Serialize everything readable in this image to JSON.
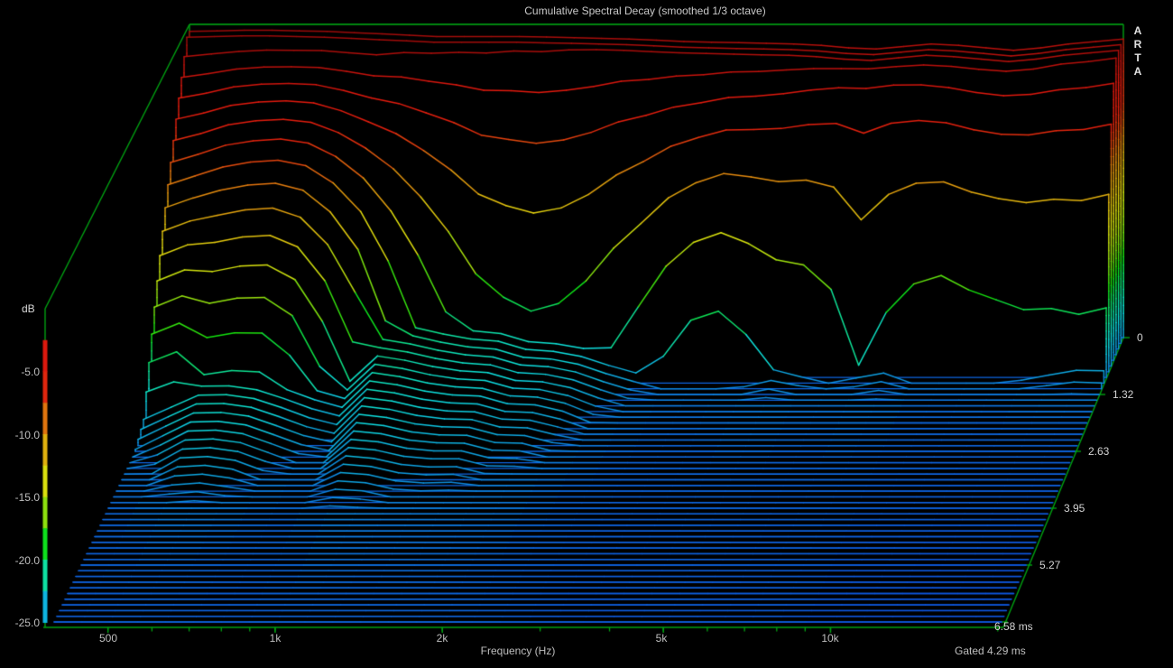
{
  "header": {
    "watermark": [
      "A",
      "R",
      "T",
      "A"
    ]
  },
  "colors": {
    "background": "#000000",
    "axis_green": "#00a312",
    "border_green": "#00b014",
    "text_gray": "#bebebe",
    "text_bright": "#e2e2e2",
    "floor_line_blue": "#0e55e1"
  },
  "chart_data": {
    "type": "waterfall",
    "title": "Cumulative Spectral Decay (smoothed 1/3 octave)",
    "gate_label": "Gated 4.29 ms",
    "x_axis": {
      "label": "Frequency (Hz)",
      "scale": "log",
      "range_hz": [
        400,
        20319
      ],
      "major_ticks": [
        {
          "hz": 500,
          "label": "500"
        },
        {
          "hz": 1000,
          "label": "1k"
        },
        {
          "hz": 2000,
          "label": "2k"
        },
        {
          "hz": 5000,
          "label": "5k"
        },
        {
          "hz": 10000,
          "label": "10k"
        }
      ],
      "minor_ticks_hz": [
        500,
        600,
        700,
        800,
        900,
        1000,
        2000,
        3000,
        4000,
        5000,
        6000,
        7000,
        8000,
        9000,
        10000,
        20000
      ]
    },
    "y_axis": {
      "unit": "dB",
      "range_db": [
        0,
        -25
      ],
      "ticks": [
        {
          "db": -5,
          "label": "-5.0"
        },
        {
          "db": -10,
          "label": "-10.0"
        },
        {
          "db": -15,
          "label": "-15.0"
        },
        {
          "db": -20,
          "label": "-20.0"
        },
        {
          "db": -25,
          "label": "-25.0"
        }
      ]
    },
    "t_axis": {
      "unit": "ms",
      "range_ms": [
        0,
        6.58
      ],
      "num_slices": 51,
      "ticks": [
        {
          "ms": 0,
          "label": "0"
        },
        {
          "ms": 1.32,
          "label": "1.32"
        },
        {
          "ms": 2.63,
          "label": "2.63"
        },
        {
          "ms": 3.95,
          "label": "3.95"
        },
        {
          "ms": 5.27,
          "label": "5.27"
        },
        {
          "ms": 6.58,
          "label": "6.58 ms"
        }
      ]
    },
    "floor_db": -25,
    "color_scale": {
      "band_step_db": 2.5,
      "saturation_pct": 88,
      "hue_stops_negdb_hue": [
        [
          0,
          0
        ],
        [
          6,
          5
        ],
        [
          7.5,
          16
        ],
        [
          9,
          32
        ],
        [
          11,
          45
        ],
        [
          13,
          57
        ],
        [
          15,
          70
        ],
        [
          17,
          92
        ],
        [
          19.5,
          138
        ],
        [
          21.8,
          170
        ],
        [
          23.7,
          192
        ],
        [
          25,
          205
        ],
        [
          28,
          214
        ],
        [
          40,
          220
        ]
      ],
      "lightness": "min(47, 30 + 4.3*negdb)"
    },
    "surface": {
      "comment": "db(f,t) = max( initial - rate*T - accel*T^3 , tail_level - tail_rate*t ), T = max(0, t - onset_ms); clipped at floor_db for display",
      "frequencies_hz": [
        400,
        449,
        504,
        566,
        635,
        713,
        800,
        898,
        1008,
        1131,
        1270,
        1425,
        1600,
        1796,
        2016,
        2263,
        2540,
        2851,
        3200,
        3592,
        4032,
        4525,
        5080,
        5702,
        6400,
        7184,
        8063,
        9051,
        10159,
        11404,
        12800,
        14366,
        16127,
        18102,
        20319
      ],
      "initial_db": [
        -0.6,
        -0.55,
        -0.5,
        -0.5,
        -0.55,
        -0.6,
        -0.7,
        -0.8,
        -0.9,
        -1.0,
        -1.0,
        -1.0,
        -1.0,
        -1.05,
        -1.1,
        -1.15,
        -1.2,
        -1.3,
        -1.4,
        -1.45,
        -1.5,
        -1.55,
        -1.6,
        -1.7,
        -1.9,
        -2.0,
        -1.8,
        -1.6,
        -1.7,
        -1.9,
        -2.1,
        -1.9,
        -1.6,
        -1.4,
        -1.2
      ],
      "decay_rate_db_per_ms": [
        9.0,
        8.3,
        7.0,
        6.6,
        6.3,
        6.6,
        7.5,
        9.0,
        11.0,
        13.0,
        15.5,
        18.0,
        19.5,
        20.0,
        20.0,
        19.0,
        17.0,
        15.0,
        13.0,
        11.5,
        10.0,
        9.0,
        8.0,
        6.5,
        4.5,
        3.0,
        4.0,
        5.5,
        7.0,
        8.0,
        9.0,
        9.5,
        10.0,
        10.0,
        10.0
      ],
      "decay_accel_db_per_ms3": [
        0.5,
        0.6,
        1.3,
        1.4,
        1.5,
        1.8,
        2.5,
        4.0,
        9.0,
        16,
        26,
        38,
        48,
        53,
        53,
        48,
        40,
        32,
        26,
        22,
        24,
        30,
        40,
        48,
        65,
        98,
        80,
        65,
        60,
        62,
        66,
        70,
        74,
        78,
        81
      ],
      "decay_onset_ms": [
        0.14,
        0.15,
        0.15,
        0.16,
        0.16,
        0.17,
        0.17,
        0.18,
        0.22,
        0.23,
        0.24,
        0.24,
        0.25,
        0.25,
        0.26,
        0.27,
        0.28,
        0.28,
        0.29,
        0.29,
        0.3,
        0.3,
        0.31,
        0.32,
        0.33,
        0.33,
        0.34,
        0.34,
        0.35,
        0.35,
        0.36,
        0.36,
        0.37,
        0.37,
        0.38
      ],
      "tail_level_db": [
        -18.0,
        -17.7,
        -17.4,
        -17.6,
        -17.9,
        -18.4,
        -19.2,
        -20.2,
        -18.5,
        -19.0,
        -19.5,
        -20.0,
        -20.3,
        -21.0,
        -21.2,
        -21.5,
        -22.0,
        -22.4,
        -23.0,
        -23.2,
        -23.0,
        -22.6,
        -22.2,
        -22.5,
        -23.0,
        -22.6,
        -22.3,
        -22.8,
        -23.6,
        -22.6,
        -22.4,
        -21.4,
        -21.2,
        -20.2,
        -19.8
      ],
      "tail_rate_db_per_ms": [
        2.6,
        2.3,
        2.0,
        1.9,
        1.9,
        2.0,
        2.0,
        1.8,
        1.6,
        1.5,
        1.5,
        1.4,
        1.3,
        1.25,
        1.2,
        1.3,
        1.5,
        1.7,
        1.9,
        2.0,
        2.0,
        1.9,
        1.8,
        1.9,
        2.0,
        1.9,
        1.8,
        2.2,
        2.6,
        2.4,
        2.9,
        3.2,
        3.0,
        3.6,
        4.0
      ]
    }
  }
}
